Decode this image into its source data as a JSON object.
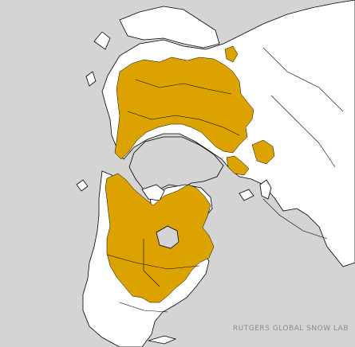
{
  "map": {
    "projection": "polar-stereographic-north",
    "colors": {
      "ocean": "#d4d4d4",
      "land_no_snow": "#ffffff",
      "snow_cover": "#dba200",
      "border": "#000000"
    },
    "legend": [
      "ocean",
      "land_no_snow",
      "snow_cover"
    ],
    "credit": "RUTGERS GLOBAL SNOW LAB"
  }
}
